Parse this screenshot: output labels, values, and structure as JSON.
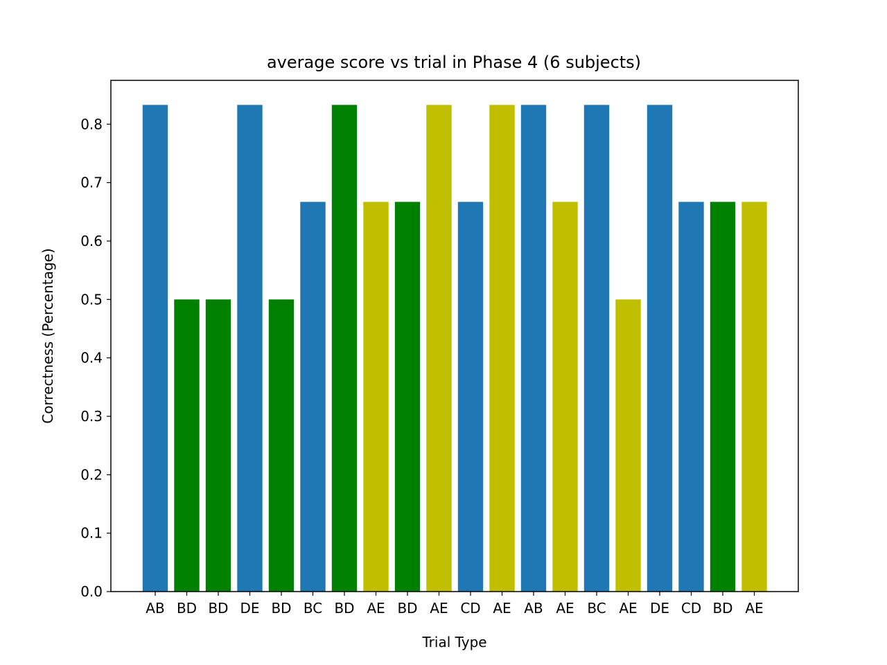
{
  "chart_data": {
    "type": "bar",
    "title": "average score vs trial in Phase 4 (6 subjects)",
    "xlabel": "Trial Type",
    "ylabel": "Correctness (Percentage)",
    "ylim": [
      0,
      0.875
    ],
    "yticks": [
      "0.0",
      "0.1",
      "0.2",
      "0.3",
      "0.4",
      "0.5",
      "0.6",
      "0.7",
      "0.8"
    ],
    "categories": [
      "AB",
      "BD",
      "BD",
      "DE",
      "BD",
      "BC",
      "BD",
      "AE",
      "BD",
      "AE",
      "CD",
      "AE",
      "AB",
      "AE",
      "BC",
      "AE",
      "DE",
      "CD",
      "BD",
      "AE"
    ],
    "values": [
      0.833,
      0.5,
      0.5,
      0.833,
      0.5,
      0.667,
      0.833,
      0.667,
      0.667,
      0.833,
      0.667,
      0.833,
      0.833,
      0.667,
      0.833,
      0.5,
      0.833,
      0.667,
      0.667,
      0.667
    ],
    "bar_colors": [
      "#1f77b4",
      "#008000",
      "#008000",
      "#1f77b4",
      "#008000",
      "#1f77b4",
      "#008000",
      "#bfbf00",
      "#008000",
      "#bfbf00",
      "#1f77b4",
      "#bfbf00",
      "#1f77b4",
      "#bfbf00",
      "#1f77b4",
      "#bfbf00",
      "#1f77b4",
      "#1f77b4",
      "#008000",
      "#bfbf00"
    ],
    "grid": false,
    "legend": "none"
  }
}
